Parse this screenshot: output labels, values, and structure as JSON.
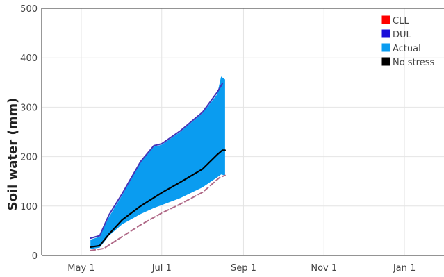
{
  "chart_data": {
    "type": "area",
    "title": "",
    "xlabel": "",
    "ylabel": "Soil water (mm)",
    "x_ticks": [
      "May 1",
      "Jul 1",
      "Sep 1",
      "Nov 1",
      "Jan 1"
    ],
    "y_ticks": [
      0,
      100,
      200,
      300,
      400,
      500
    ],
    "ylim": [
      0,
      500
    ],
    "xlim": [
      "2023-04-01",
      "2024-01-31"
    ],
    "grid": true,
    "legend_position": "top-right",
    "colors": {
      "CLL": "#ff0000",
      "DUL": "#1a0dd9",
      "Actual": "#0a9cf0",
      "No stress": "#000000"
    },
    "series": [
      {
        "name": "CLL",
        "x": [
          "2023-05-08",
          "2023-05-18",
          "2023-06-01",
          "2023-06-15",
          "2023-07-01",
          "2023-07-15",
          "2023-08-01",
          "2023-08-14",
          "2023-08-18"
        ],
        "values": [
          10,
          14,
          38,
          62,
          86,
          104,
          128,
          158,
          162
        ]
      },
      {
        "name": "DUL",
        "x": [
          "2023-05-08",
          "2023-05-15",
          "2023-05-22",
          "2023-06-01",
          "2023-06-15",
          "2023-06-25",
          "2023-07-01",
          "2023-07-15",
          "2023-08-01",
          "2023-08-12",
          "2023-08-16"
        ],
        "values": [
          35,
          40,
          82,
          125,
          190,
          222,
          226,
          252,
          290,
          330,
          348
        ]
      },
      {
        "name": "Actual",
        "x": [
          "2023-05-08",
          "2023-05-15",
          "2023-05-22",
          "2023-06-01",
          "2023-06-15",
          "2023-06-25",
          "2023-07-01",
          "2023-07-15",
          "2023-08-01",
          "2023-08-12",
          "2023-08-15",
          "2023-08-18"
        ],
        "upper": [
          32,
          38,
          78,
          122,
          188,
          220,
          224,
          250,
          288,
          326,
          362,
          356
        ],
        "lower": [
          13,
          16,
          40,
          63,
          84,
          96,
          102,
          116,
          138,
          158,
          164,
          162
        ]
      },
      {
        "name": "No stress",
        "x": [
          "2023-05-08",
          "2023-05-15",
          "2023-05-22",
          "2023-06-01",
          "2023-06-15",
          "2023-07-01",
          "2023-07-15",
          "2023-08-01",
          "2023-08-12",
          "2023-08-16",
          "2023-08-18"
        ],
        "values": [
          17,
          20,
          43,
          72,
          100,
          127,
          148,
          175,
          204,
          213,
          213
        ]
      }
    ]
  }
}
